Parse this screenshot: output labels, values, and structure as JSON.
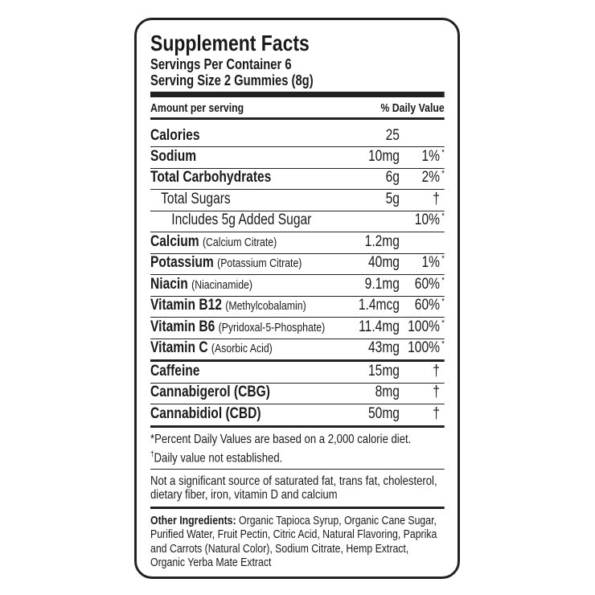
{
  "title": "Supplement Facts",
  "servings_per_container": "Servings Per Container 6",
  "serving_size": "Serving Size 2 Gummies (8g)",
  "header": {
    "amount": "Amount per serving",
    "daily_value": "% Daily Value"
  },
  "nutrients": [
    {
      "name": "Calories",
      "amount": "25"
    },
    {
      "name": "Sodium",
      "amount": "10mg",
      "dv": "1%",
      "mark": "*"
    },
    {
      "name": "Total Carbohydrates",
      "amount": "6g",
      "dv": "2%",
      "mark": "*",
      "sub": [
        {
          "name": "Total Sugars",
          "amount": "5g",
          "dv": "†",
          "sub": [
            {
              "name": "Includes 5g Added Sugar",
              "dv": "10%",
              "mark": "*"
            }
          ]
        }
      ]
    },
    {
      "name": "Calcium",
      "detail": "(Calcium Citrate)",
      "amount": "1.2mg"
    },
    {
      "name": "Potassium",
      "detail": "(Potassium Citrate)",
      "amount": "40mg",
      "dv": "1%",
      "mark": "*"
    },
    {
      "name": "Niacin",
      "detail": "(Niacinamide)",
      "amount": "9.1mg",
      "dv": "60%",
      "mark": "*"
    },
    {
      "name": "Vitamin B12",
      "detail": "(Methylcobalamin)",
      "amount": "1.4mcg",
      "dv": "60%",
      "mark": "*"
    },
    {
      "name": "Vitamin B6",
      "detail": "(Pyridoxal-5-Phosphate)",
      "amount": "11.4mg",
      "dv": "100%",
      "mark": "*"
    },
    {
      "name": "Vitamin C",
      "detail": "(Asorbic Acid)",
      "amount": "43mg",
      "dv": "100%",
      "mark": "*"
    }
  ],
  "other_compounds": [
    {
      "name": "Caffeine",
      "amount": "15mg",
      "dv": "†"
    },
    {
      "name": "Cannabigerol (CBG)",
      "amount": "8mg",
      "dv": "†"
    },
    {
      "name": "Cannabidiol (CBD)",
      "amount": "50mg",
      "dv": "†"
    }
  ],
  "footnotes": {
    "percent": "*Percent Daily Values are based on a 2,000 calorie diet.",
    "dagger": {
      "symbol": "†",
      "text": "Daily value not established."
    }
  },
  "not_significant": "Not a significant source of saturated fat, trans fat, cholesterol, dietary fiber, iron, vitamin D and calcium",
  "other_ingredients": {
    "label": "Other Ingredients:",
    "text": "Organic Tapioca Syrup, Organic Cane Sugar, Purified Water, Fruit Pectin, Citric Acid, Natural Flavoring, Paprika and Carrots (Natural Color), Sodium Citrate, Hemp Extract, Organic Yerba Mate Extract"
  }
}
